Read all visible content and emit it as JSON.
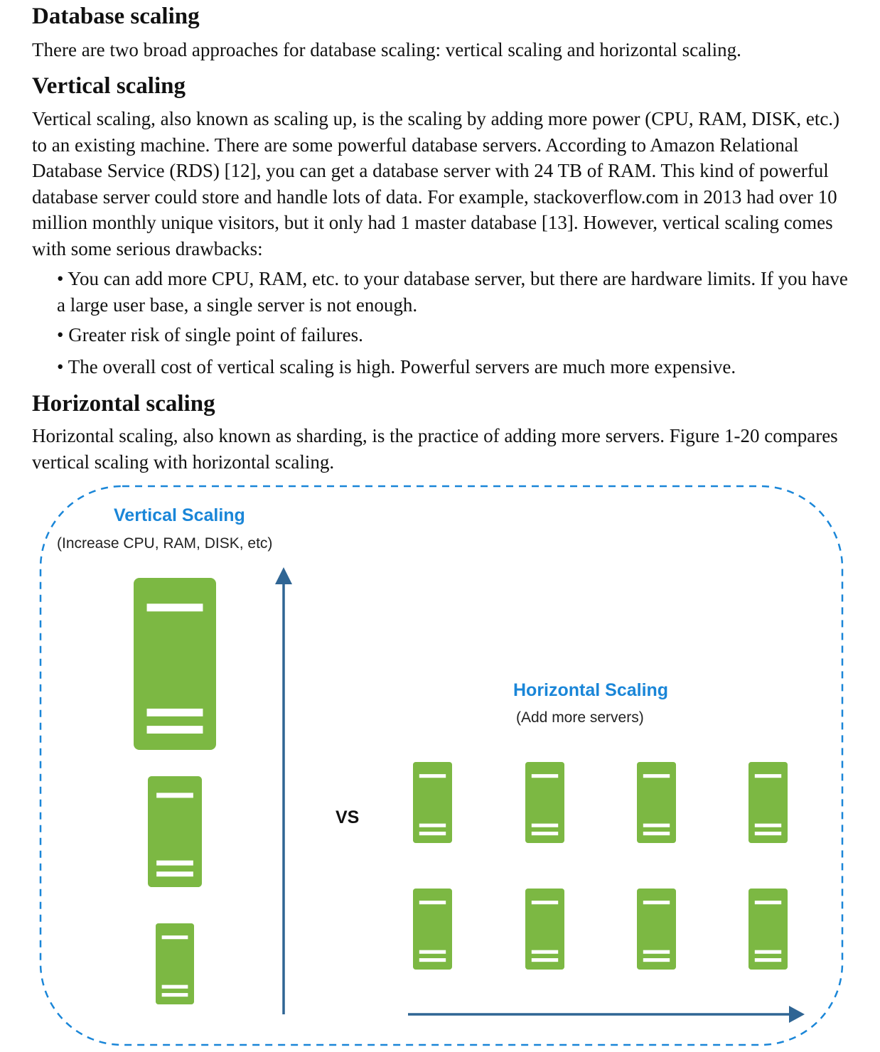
{
  "section": {
    "heading": "Database scaling",
    "intro": "There are two broad approaches for database scaling: vertical scaling and horizontal scaling."
  },
  "vertical": {
    "heading": "Vertical scaling",
    "paragraph": "Vertical scaling, also known as scaling up, is the scaling by adding more power (CPU, RAM, DISK, etc.) to an existing machine. There are some powerful database servers. According to Amazon Relational Database Service (RDS) [12], you can get a database server with 24 TB of RAM. This kind of powerful database server could store and handle lots of data. For example, stackoverflow.com in 2013 had over 10 million monthly unique visitors, but it only had 1 master database [13]. However, vertical scaling comes with some serious drawbacks:",
    "bullets": [
      "• You can add more CPU, RAM, etc. to your database server, but there are hardware limits. If you have a large user base, a single server is not enough.",
      "• Greater risk of single point of failures.",
      "• The overall cost of vertical scaling is high. Powerful servers are much more expensive."
    ]
  },
  "horizontal": {
    "heading": "Horizontal scaling",
    "paragraph": "Horizontal scaling, also known as sharding, is the practice of adding more servers. Figure 1-20 compares vertical scaling with horizontal scaling."
  },
  "figure": {
    "vertical_title": "Vertical Scaling",
    "vertical_subtitle": "(Increase CPU, RAM, DISK, etc)",
    "horizontal_title": "Horizontal Scaling",
    "horizontal_subtitle": "(Add more servers)",
    "vs_label": "VS",
    "colors": {
      "server": "#7cb843",
      "arrow": "#2f6594",
      "border": "#1a86d8",
      "title": "#1a86d8"
    },
    "vertical_server_sizes": [
      "large",
      "medium",
      "small"
    ],
    "horizontal_server_count": 8
  }
}
